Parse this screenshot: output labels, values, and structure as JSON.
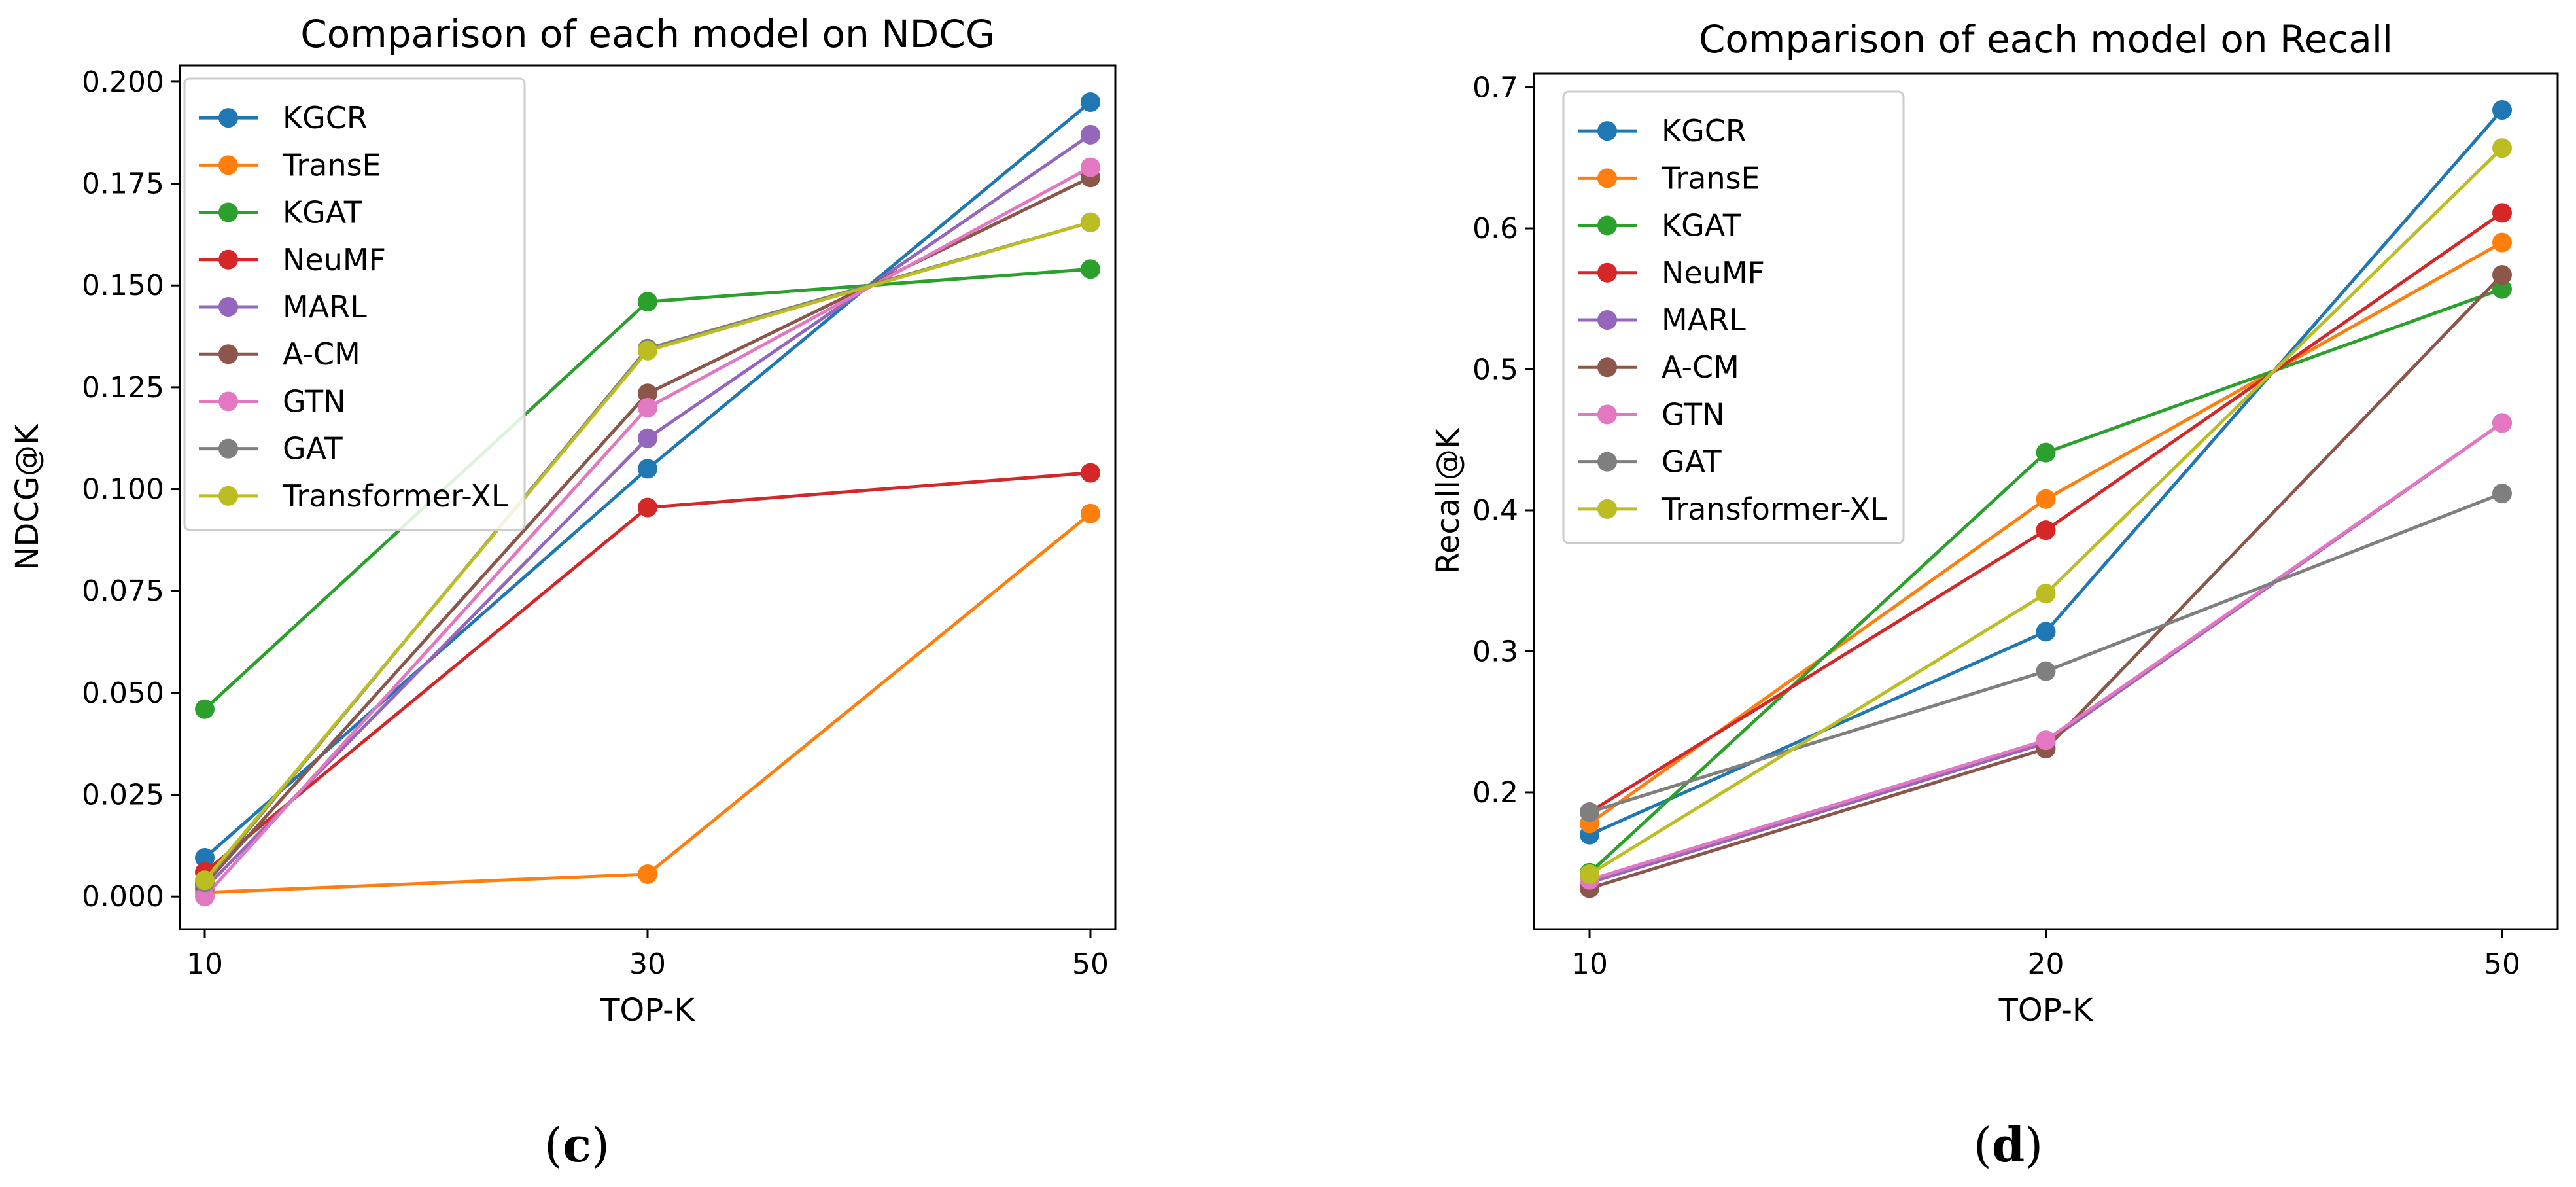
{
  "colors": {
    "KGCR": "#1f77b4",
    "TransE": "#ff7f0e",
    "KGAT": "#2ca02c",
    "NeuMF": "#d62728",
    "MARL": "#9467bd",
    "A-CM": "#8c564b",
    "GTN": "#e377c2",
    "GAT": "#7f7f7f",
    "Transformer-XL": "#bcbd22"
  },
  "panels": [
    {
      "label_open": "(",
      "label_letter": "c",
      "label_close": ")"
    },
    {
      "label_open": "(",
      "label_letter": "d",
      "label_close": ")"
    }
  ],
  "chart_data": [
    {
      "type": "line",
      "title": "Comparison of each model on NDCG",
      "xlabel": "TOP-K",
      "ylabel": "NDCG@K",
      "categories": [
        "10",
        "30",
        "50"
      ],
      "ylim": [
        -0.008,
        0.204
      ],
      "yticks": [
        "0.000",
        "0.025",
        "0.050",
        "0.075",
        "0.100",
        "0.125",
        "0.150",
        "0.175",
        "0.200"
      ],
      "ytick_values": [
        0,
        0.025,
        0.05,
        0.075,
        0.1,
        0.125,
        0.15,
        0.175,
        0.2
      ],
      "legend_position": "top-left",
      "series": [
        {
          "name": "KGCR",
          "values": [
            0.0095,
            0.105,
            0.195
          ]
        },
        {
          "name": "TransE",
          "values": [
            0.001,
            0.0055,
            0.094
          ]
        },
        {
          "name": "KGAT",
          "values": [
            0.046,
            0.146,
            0.154
          ]
        },
        {
          "name": "NeuMF",
          "values": [
            0.006,
            0.0955,
            0.104
          ]
        },
        {
          "name": "MARL",
          "values": [
            0.002,
            0.1125,
            0.187
          ]
        },
        {
          "name": "A-CM",
          "values": [
            0.003,
            0.1235,
            0.1765
          ]
        },
        {
          "name": "GTN",
          "values": [
            0.0,
            0.12,
            0.179
          ]
        },
        {
          "name": "GAT",
          "values": [
            0.0035,
            0.1345,
            0.1655
          ]
        },
        {
          "name": "Transformer-XL",
          "values": [
            0.004,
            0.134,
            0.1655
          ]
        }
      ]
    },
    {
      "type": "line",
      "title": "Comparison of each model on Recall",
      "xlabel": "TOP-K",
      "ylabel": "Recall@K",
      "categories": [
        "10",
        "20",
        "50"
      ],
      "ylim": [
        0.103,
        0.71
      ],
      "yticks": [
        "0.2",
        "0.3",
        "0.4",
        "0.5",
        "0.6",
        "0.7"
      ],
      "ytick_values": [
        0.2,
        0.3,
        0.4,
        0.5,
        0.6,
        0.7
      ],
      "legend_position": "top-left",
      "series": [
        {
          "name": "KGCR",
          "values": [
            0.17,
            0.314,
            0.684
          ]
        },
        {
          "name": "TransE",
          "values": [
            0.178,
            0.408,
            0.59
          ]
        },
        {
          "name": "KGAT",
          "values": [
            0.143,
            0.441,
            0.557
          ]
        },
        {
          "name": "NeuMF",
          "values": [
            0.186,
            0.386,
            0.611
          ]
        },
        {
          "name": "MARL",
          "values": [
            0.136,
            0.235,
            0.462
          ]
        },
        {
          "name": "A-CM",
          "values": [
            0.132,
            0.231,
            0.567
          ]
        },
        {
          "name": "GTN",
          "values": [
            0.138,
            0.237,
            0.462
          ]
        },
        {
          "name": "GAT",
          "values": [
            0.186,
            0.286,
            0.412
          ]
        },
        {
          "name": "Transformer-XL",
          "values": [
            0.142,
            0.341,
            0.657
          ]
        }
      ]
    }
  ]
}
